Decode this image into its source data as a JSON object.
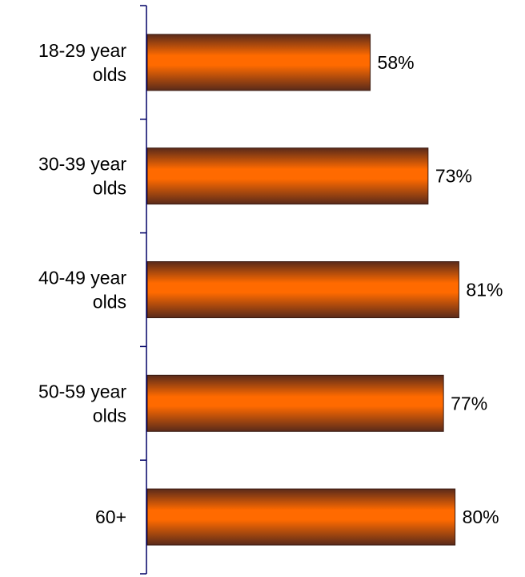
{
  "chart_data": {
    "type": "bar",
    "orientation": "horizontal",
    "categories": [
      [
        "18-29 year",
        "olds"
      ],
      [
        "30-39 year",
        "olds"
      ],
      [
        "40-49 year",
        "olds"
      ],
      [
        "50-59 year",
        "olds"
      ],
      [
        "60+"
      ]
    ],
    "values": [
      58,
      73,
      81,
      77,
      80
    ],
    "data_labels": [
      "58%",
      "73%",
      "81%",
      "77%",
      "80%"
    ],
    "value_unit": "%",
    "xlim": [
      0,
      100
    ],
    "title": "",
    "xlabel": "",
    "ylabel": "",
    "grid": false,
    "legend": "none",
    "colors": {
      "bar_mid": "#ff6a00",
      "bar_edge": "#5a2a1a",
      "axis": "#000066"
    }
  }
}
